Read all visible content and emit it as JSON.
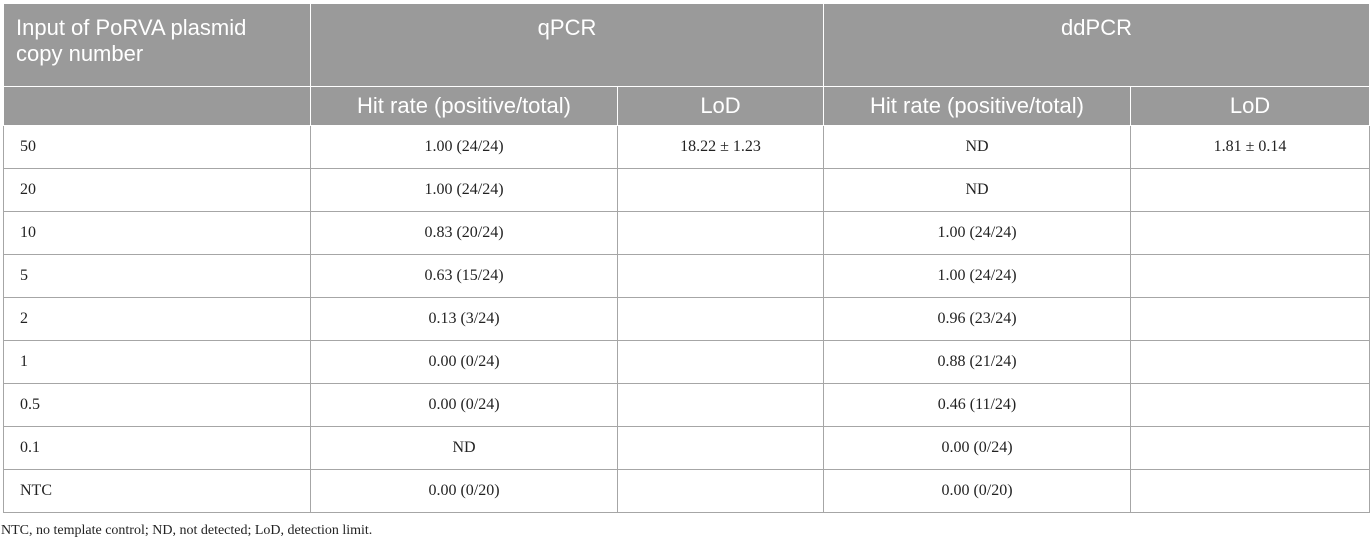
{
  "table": {
    "header": {
      "input_label": "Input of PoRVA plasmid copy number",
      "groups": [
        "qPCR",
        "ddPCR"
      ],
      "sub": [
        "Hit rate (positive/total)",
        "LoD",
        "Hit rate (positive/total)",
        "LoD"
      ]
    },
    "rows": [
      [
        "50",
        "1.00 (24/24)",
        "18.22 ± 1.23",
        "ND",
        "1.81 ± 0.14"
      ],
      [
        "20",
        "1.00 (24/24)",
        "",
        "ND",
        ""
      ],
      [
        "10",
        "0.83 (20/24)",
        "",
        "1.00 (24/24)",
        ""
      ],
      [
        "5",
        "0.63 (15/24)",
        "",
        "1.00 (24/24)",
        ""
      ],
      [
        "2",
        "0.13 (3/24)",
        "",
        "0.96 (23/24)",
        ""
      ],
      [
        "1",
        "0.00 (0/24)",
        "",
        "0.88 (21/24)",
        ""
      ],
      [
        "0.5",
        "0.00 (0/24)",
        "",
        "0.46 (11/24)",
        ""
      ],
      [
        "0.1",
        "ND",
        "",
        "0.00 (0/24)",
        ""
      ],
      [
        "NTC",
        "0.00 (0/20)",
        "",
        "0.00 (0/20)",
        ""
      ]
    ]
  },
  "footnote": "NTC, no template control; ND, not detected; LoD, detection limit."
}
